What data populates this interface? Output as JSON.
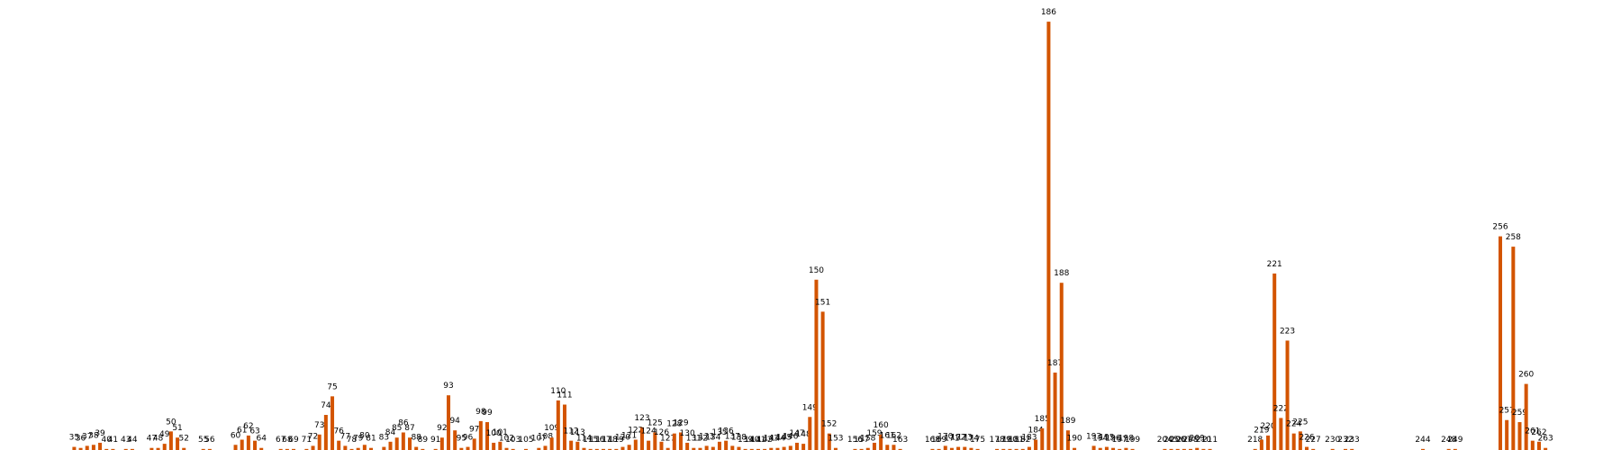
{
  "chart_data": {
    "type": "bar",
    "color": "#d35400",
    "x": [
      35,
      36,
      37,
      38,
      39,
      40,
      41,
      43,
      44,
      47,
      48,
      49,
      50,
      51,
      52,
      55,
      56,
      60,
      61,
      62,
      63,
      64,
      67,
      68,
      69,
      71,
      72,
      73,
      74,
      75,
      76,
      77,
      78,
      79,
      80,
      81,
      83,
      84,
      85,
      86,
      87,
      88,
      89,
      91,
      92,
      93,
      94,
      95,
      96,
      97,
      98,
      99,
      100,
      101,
      102,
      103,
      105,
      107,
      108,
      109,
      110,
      111,
      112,
      113,
      114,
      115,
      116,
      117,
      118,
      119,
      120,
      121,
      122,
      123,
      124,
      125,
      126,
      127,
      128,
      129,
      130,
      131,
      132,
      133,
      134,
      135,
      136,
      137,
      138,
      139,
      140,
      141,
      142,
      143,
      144,
      145,
      146,
      147,
      148,
      149,
      150,
      151,
      152,
      153,
      156,
      157,
      158,
      159,
      160,
      161,
      162,
      163,
      168,
      169,
      170,
      171,
      172,
      173,
      174,
      175,
      178,
      179,
      180,
      181,
      182,
      183,
      184,
      185,
      186,
      187,
      188,
      189,
      190,
      193,
      194,
      195,
      196,
      197,
      198,
      199,
      204,
      205,
      206,
      207,
      208,
      209,
      210,
      211,
      218,
      219,
      220,
      221,
      222,
      223,
      224,
      225,
      226,
      227,
      230,
      232,
      233,
      244,
      248,
      249,
      256,
      257,
      258,
      259,
      260,
      261,
      262,
      263
    ],
    "values": [
      3,
      2,
      4,
      5,
      7,
      1,
      1,
      1,
      1,
      2,
      2,
      6,
      18,
      12,
      2,
      1,
      1,
      5,
      10,
      14,
      9,
      2,
      1,
      1,
      1,
      1,
      4,
      15,
      34,
      52,
      9,
      4,
      1,
      2,
      5,
      2,
      3,
      8,
      12,
      17,
      12,
      3,
      1,
      1,
      12,
      53,
      19,
      2,
      3,
      11,
      28,
      27,
      7,
      8,
      2,
      1,
      1,
      2,
      4,
      12,
      48,
      44,
      9,
      8,
      2,
      1,
      1,
      1,
      1,
      1,
      3,
      5,
      10,
      22,
      9,
      17,
      8,
      2,
      16,
      17,
      7,
      2,
      2,
      4,
      3,
      8,
      9,
      4,
      3,
      1,
      1,
      1,
      1,
      2,
      2,
      3,
      4,
      7,
      6,
      32,
      165,
      134,
      16,
      2,
      1,
      1,
      2,
      7,
      15,
      5,
      5,
      1,
      1,
      1,
      4,
      2,
      3,
      3,
      2,
      1,
      1,
      1,
      1,
      1,
      1,
      3,
      10,
      21,
      415,
      75,
      162,
      19,
      2,
      4,
      2,
      3,
      2,
      1,
      2,
      1,
      1,
      1,
      1,
      1,
      1,
      2,
      1,
      1,
      1,
      10,
      14,
      171,
      31,
      106,
      16,
      18,
      3,
      1,
      1,
      1,
      1,
      1,
      1,
      1,
      207,
      29,
      197,
      27,
      64,
      9,
      8,
      2
    ],
    "xlim": [
      23.5,
      274.7
    ],
    "ylim": [
      0,
      436
    ]
  }
}
